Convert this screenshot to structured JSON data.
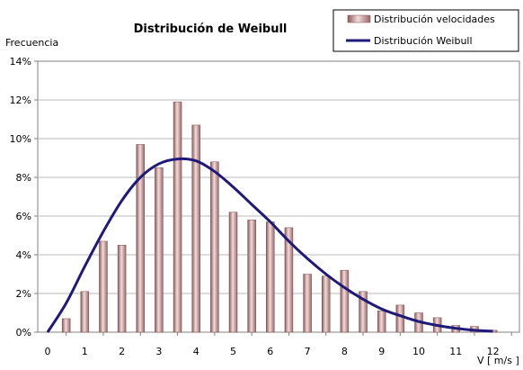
{
  "chart_data": {
    "type": "bar",
    "title": "Distribución de Weibull",
    "ylabel": "Frecuencia",
    "xlabel": "V [ m/s ]",
    "ylim": [
      0,
      14
    ],
    "xlim": [
      0,
      12
    ],
    "yticks": [
      "0%",
      "2%",
      "4%",
      "6%",
      "8%",
      "10%",
      "12%",
      "14%"
    ],
    "xticks": [
      "0",
      "1",
      "2",
      "3",
      "4",
      "5",
      "6",
      "7",
      "8",
      "9",
      "10",
      "11",
      "12"
    ],
    "grid": "horizontal",
    "legend": "top-right",
    "series": [
      {
        "name": "Distribución velocidades",
        "kind": "bar",
        "color": "#c79a9a",
        "x": [
          0.5,
          1,
          1.5,
          2,
          2.5,
          3,
          3.5,
          4,
          4.5,
          5,
          5.5,
          6,
          6.5,
          7,
          7.5,
          8,
          8.5,
          9,
          9.5,
          10,
          10.5,
          11,
          11.5,
          12
        ],
        "values": [
          0.7,
          2.1,
          4.7,
          4.5,
          9.7,
          8.5,
          11.9,
          10.7,
          8.8,
          6.2,
          5.8,
          5.7,
          5.4,
          3.0,
          2.9,
          3.2,
          2.1,
          1.1,
          1.4,
          1.0,
          0.75,
          0.35,
          0.3,
          0.1
        ]
      },
      {
        "name": "Distribución Weibull",
        "kind": "line",
        "color": "#1f1a7a",
        "x": [
          0,
          0.5,
          1,
          1.5,
          2,
          2.5,
          3,
          3.5,
          4,
          4.5,
          5,
          5.5,
          6,
          6.5,
          7,
          7.5,
          8,
          8.5,
          9,
          9.5,
          10,
          10.5,
          11,
          11.5,
          12
        ],
        "values": [
          0,
          1.5,
          3.4,
          5.2,
          6.8,
          8.0,
          8.7,
          8.95,
          8.85,
          8.3,
          7.5,
          6.6,
          5.7,
          4.7,
          3.8,
          3.0,
          2.3,
          1.7,
          1.2,
          0.85,
          0.55,
          0.35,
          0.2,
          0.1,
          0.05
        ]
      }
    ]
  }
}
